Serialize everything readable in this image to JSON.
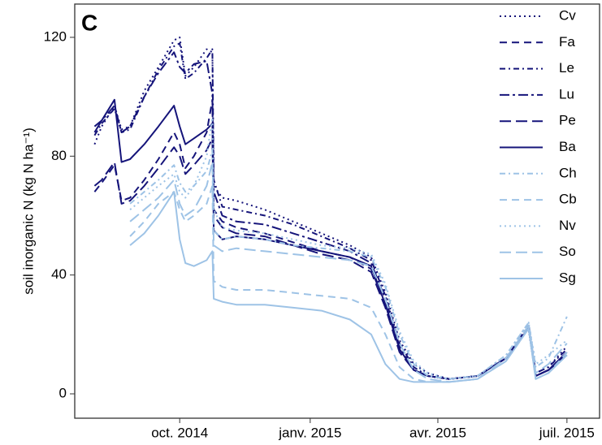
{
  "chart_data": {
    "type": "line",
    "panel_label": "C",
    "y_label": "soil inorganic N (kg N  ha⁻¹)",
    "x": [
      -60,
      -55,
      -46,
      -41,
      -35,
      -25,
      -15,
      -4,
      0,
      4,
      10,
      19,
      23,
      24,
      30,
      40,
      60,
      80,
      100,
      120,
      135,
      145,
      155,
      165,
      175,
      190,
      210,
      230,
      246,
      251,
      260,
      273
    ],
    "xlim": [
      -74,
      296
    ],
    "xticks": [
      {
        "value": 0,
        "label": "oct. 2014"
      },
      {
        "value": 92,
        "label": "janv. 2015"
      },
      {
        "value": 182,
        "label": "avr. 2015"
      },
      {
        "value": 273,
        "label": "juil. 2015"
      }
    ],
    "ylim": [
      -8.2,
      131.2
    ],
    "yticks": [
      0,
      40,
      80,
      120
    ],
    "legend": "top-right",
    "series": [
      {
        "name": "Cv",
        "color": "#15147a",
        "linestyle": "dotted",
        "values": [
          84,
          90,
          97,
          89,
          90,
          102,
          110,
          119,
          120,
          107,
          110,
          116,
          115,
          70,
          66,
          65,
          62,
          58,
          54,
          50,
          46,
          34,
          18,
          10,
          7,
          5,
          6,
          12,
          23,
          7,
          9,
          16
        ]
      },
      {
        "name": "Fa",
        "color": "#15147a",
        "linestyle": "dashed",
        "values": [
          68,
          71,
          77,
          65,
          66,
          72,
          79,
          88,
          84,
          76,
          80,
          88,
          99,
          62,
          58,
          56,
          54,
          51,
          48,
          46,
          42,
          30,
          15,
          8,
          6,
          5,
          6,
          12,
          22,
          6,
          8,
          14
        ]
      },
      {
        "name": "Le",
        "color": "#15147a",
        "linestyle": "dotdash",
        "values": [
          87,
          91,
          96,
          88,
          89,
          100,
          109,
          117,
          118,
          106,
          108,
          113,
          116,
          72,
          63,
          62,
          60,
          57,
          53,
          49,
          45,
          33,
          17,
          9,
          6,
          5,
          6,
          12,
          23,
          7,
          9,
          15
        ]
      },
      {
        "name": "Lu",
        "color": "#15147a",
        "linestyle": "twodash",
        "values": [
          90,
          92,
          97,
          88,
          90,
          100,
          108,
          115,
          110,
          108,
          111,
          112,
          101,
          68,
          60,
          58,
          57,
          54,
          51,
          48,
          44,
          32,
          16,
          8,
          6,
          5,
          6,
          12,
          22,
          6,
          8,
          14
        ]
      },
      {
        "name": "Pe",
        "color": "#15147a",
        "linestyle": "longdash",
        "values": [
          70,
          72,
          78,
          64,
          65,
          70,
          76,
          83,
          80,
          74,
          77,
          82,
          86,
          60,
          56,
          54,
          53,
          50,
          47,
          45,
          41,
          29,
          14,
          8,
          6,
          5,
          6,
          12,
          22,
          6,
          8,
          13
        ]
      },
      {
        "name": "Ba",
        "color": "#15147a",
        "linestyle": "solid",
        "values": [
          88,
          92,
          99,
          78,
          79,
          84,
          90,
          97,
          90,
          84,
          86,
          89,
          91,
          55,
          52,
          53,
          52,
          50,
          48,
          46,
          43,
          30,
          15,
          8,
          6,
          5,
          6,
          12,
          22,
          6,
          8,
          14
        ]
      },
      {
        "name": "Ch",
        "color": "#9ec3e6",
        "linestyle": "dotdash",
        "values": [
          null,
          null,
          null,
          null,
          64,
          68,
          72,
          77,
          71,
          68,
          70,
          75,
          82,
          55,
          52,
          53,
          52,
          50,
          49,
          48,
          46,
          36,
          20,
          10,
          6,
          5,
          6,
          13,
          24,
          9,
          12,
          26
        ]
      },
      {
        "name": "Cb",
        "color": "#9ec3e6",
        "linestyle": "dashed",
        "values": [
          null,
          null,
          null,
          null,
          53,
          58,
          64,
          68,
          62,
          58,
          60,
          64,
          70,
          38,
          36,
          35,
          35,
          34,
          33,
          32,
          29,
          20,
          9,
          5,
          4,
          4,
          5,
          11,
          22,
          5,
          7,
          14
        ]
      },
      {
        "name": "Nv",
        "color": "#9ec3e6",
        "linestyle": "dotted",
        "values": [
          null,
          null,
          null,
          null,
          62,
          66,
          70,
          74,
          68,
          66,
          70,
          80,
          93,
          62,
          56,
          55,
          54,
          52,
          50,
          49,
          47,
          37,
          21,
          11,
          7,
          5,
          6,
          13,
          24,
          10,
          13,
          18
        ]
      },
      {
        "name": "So",
        "color": "#9ec3e6",
        "linestyle": "longdash",
        "values": [
          null,
          null,
          null,
          null,
          58,
          62,
          66,
          72,
          64,
          60,
          62,
          70,
          78,
          50,
          48,
          49,
          48,
          47,
          46,
          45,
          43,
          32,
          17,
          8,
          5,
          4,
          5,
          12,
          23,
          7,
          10,
          17
        ]
      },
      {
        "name": "Sg",
        "color": "#9ec3e6",
        "linestyle": "solid",
        "values": [
          null,
          null,
          null,
          null,
          50,
          54,
          60,
          68,
          52,
          44,
          43,
          45,
          48,
          32,
          31,
          30,
          30,
          29,
          28,
          25,
          20,
          10,
          5,
          4,
          4,
          4,
          5,
          11,
          22,
          5,
          7,
          13
        ]
      }
    ]
  }
}
